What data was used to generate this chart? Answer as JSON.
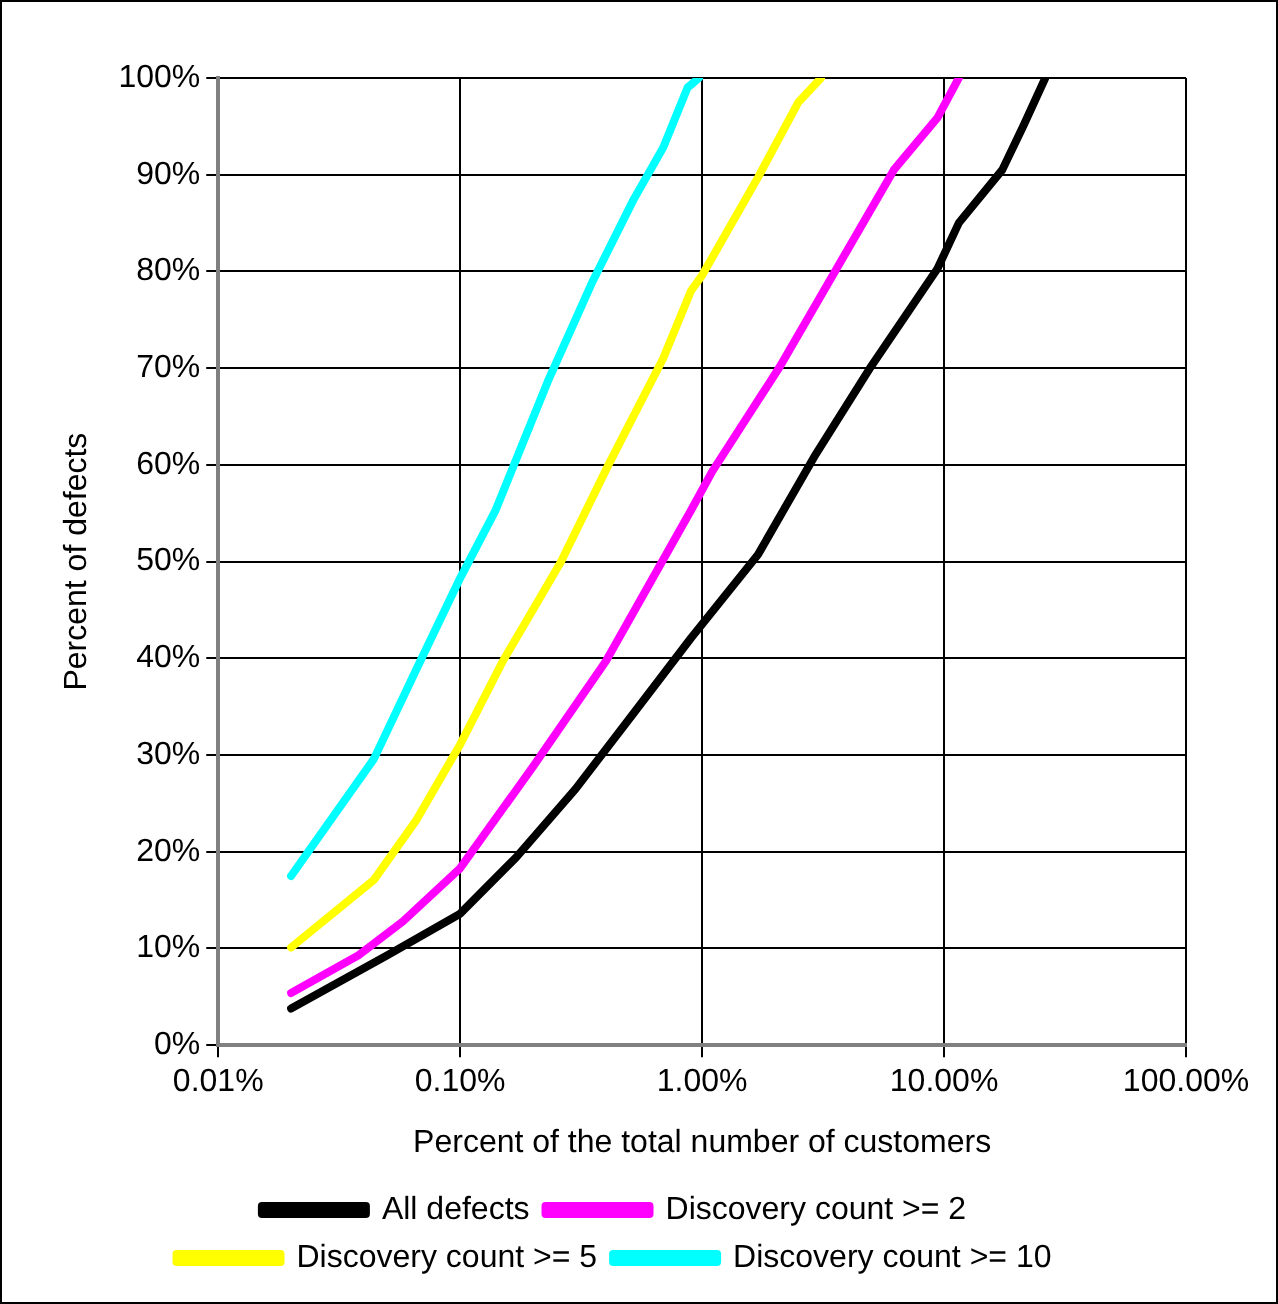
{
  "chart_data": {
    "type": "line",
    "xlabel": "Percent of the total number of customers",
    "ylabel": "Percent of defects",
    "log": "x",
    "grid": true,
    "legend": "bottom",
    "marker": "none",
    "line_style": "solid",
    "xlim": [
      0.01,
      100
    ],
    "xticks": [
      {
        "value": 0.01,
        "label": "0.01%"
      },
      {
        "value": 0.1,
        "label": "0.10%"
      },
      {
        "value": 1,
        "label": "1.00%"
      },
      {
        "value": 10,
        "label": "10.00%"
      },
      {
        "value": 100,
        "label": "100.00%"
      }
    ],
    "ylim": [
      0,
      100
    ],
    "yticks": [
      {
        "value": 0,
        "label": "0%"
      },
      {
        "value": 10,
        "label": "10%"
      },
      {
        "value": 20,
        "label": "20%"
      },
      {
        "value": 30,
        "label": "30%"
      },
      {
        "value": 40,
        "label": "40%"
      },
      {
        "value": 50,
        "label": "50%"
      },
      {
        "value": 60,
        "label": "60%"
      },
      {
        "value": 70,
        "label": "70%"
      },
      {
        "value": 80,
        "label": "80%"
      },
      {
        "value": 90,
        "label": "90%"
      },
      {
        "value": 100,
        "label": "100%"
      }
    ],
    "series": [
      {
        "name": "All defects",
        "color": "#000000",
        "x": [
          0.02,
          0.05,
          0.1,
          0.17,
          0.3,
          0.52,
          0.9,
          1.7,
          2.9,
          5.0,
          9.4,
          11.5,
          17.4,
          21.4,
          26.2
        ],
        "values": [
          3.8,
          9.3,
          13.6,
          19.4,
          26.5,
          34.3,
          42.1,
          50.7,
          60.8,
          70.2,
          80.3,
          85,
          90.5,
          95.2,
          100
        ]
      },
      {
        "name": "Discovery count >= 2",
        "color": "#ff00ff",
        "x": [
          0.02,
          0.038,
          0.058,
          0.1,
          0.2,
          0.4,
          0.9,
          1.1,
          2.1,
          3.6,
          6.2,
          9.4,
          11.5
        ],
        "values": [
          5.4,
          9.3,
          12.8,
          18.3,
          28.8,
          39.7,
          55.3,
          59.3,
          70.2,
          80.3,
          90.5,
          95.9,
          100
        ]
      },
      {
        "name": "Discovery count >= 5",
        "color": "#ffff00",
        "x": [
          0.02,
          0.044,
          0.066,
          0.1,
          0.15,
          0.26,
          0.41,
          0.69,
          0.9,
          1.0,
          1.7,
          2.5,
          3.1
        ],
        "values": [
          10.1,
          17.1,
          23.3,
          31.1,
          39.7,
          49.9,
          60,
          71,
          78,
          79.6,
          89.7,
          97.5,
          100
        ]
      },
      {
        "name": "Discovery count >= 10",
        "color": "#00ffff",
        "x": [
          0.02,
          0.044,
          0.066,
          0.1,
          0.14,
          0.23,
          0.35,
          0.52,
          0.69,
          0.87,
          0.97
        ],
        "values": [
          17.5,
          29.6,
          38.9,
          48.3,
          55.3,
          68.6,
          78.8,
          87.4,
          92.8,
          99,
          100
        ]
      }
    ]
  }
}
